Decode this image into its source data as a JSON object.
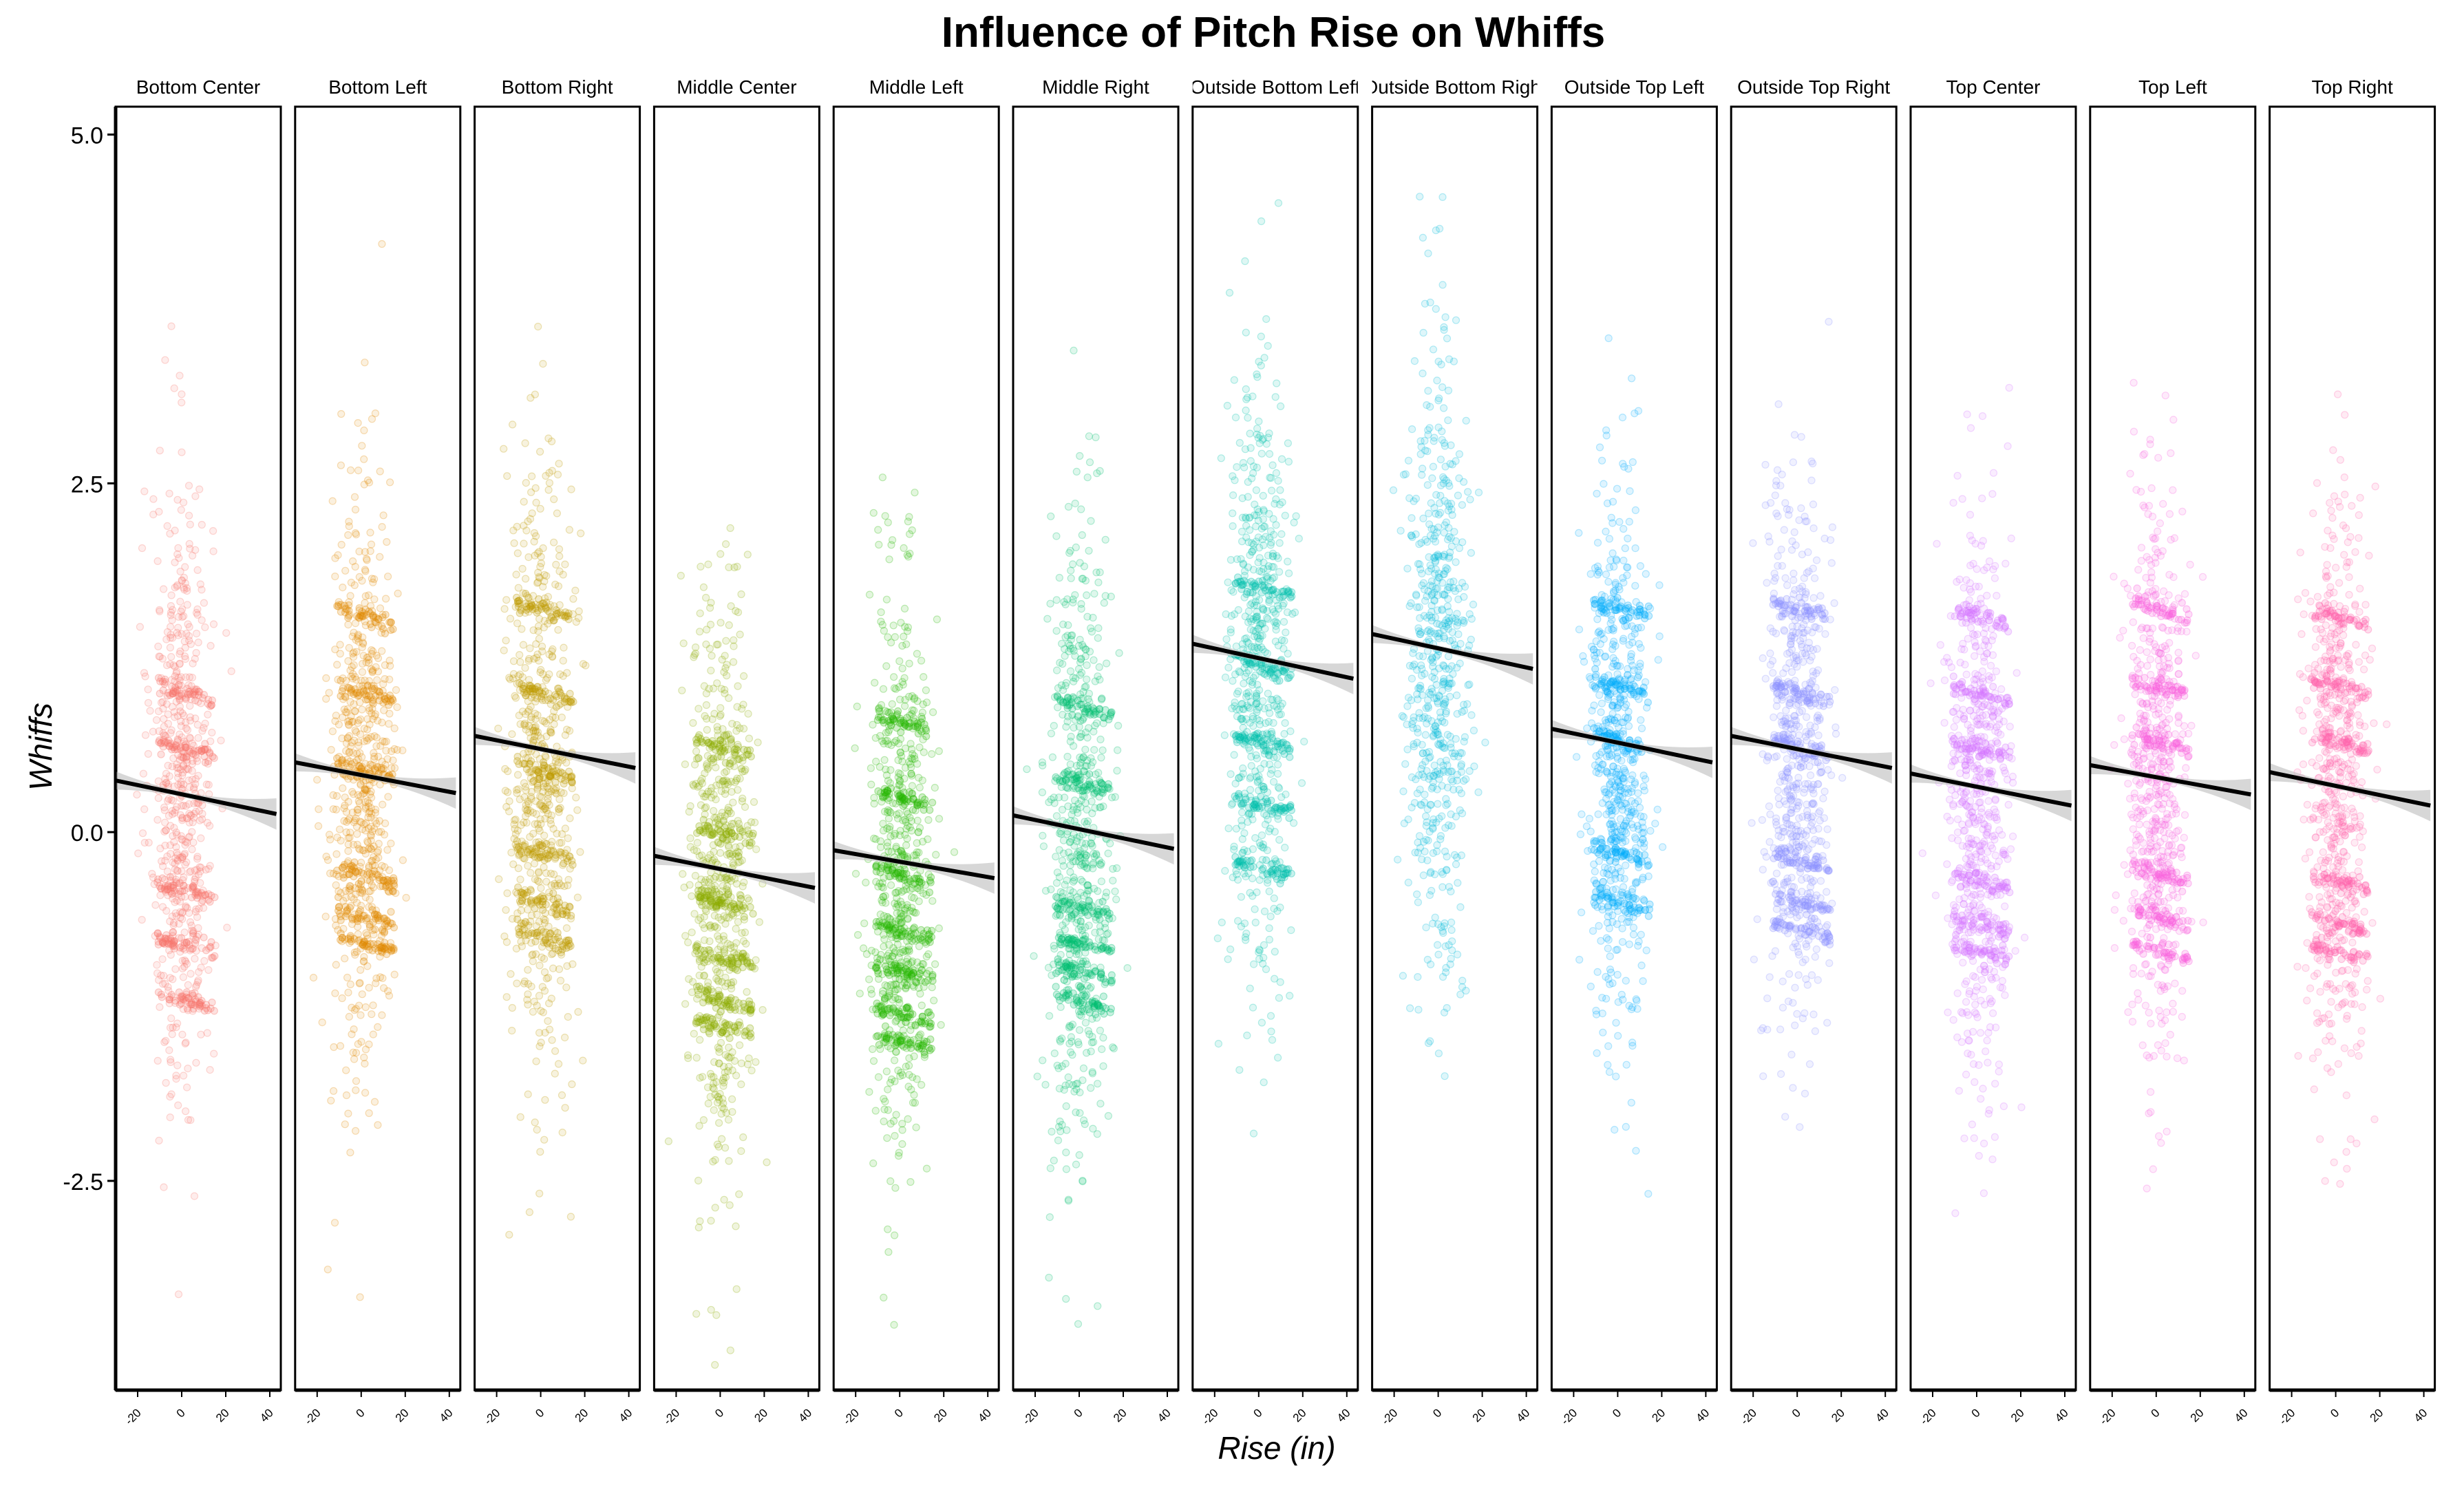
{
  "chart_data": {
    "type": "scatter",
    "title": "Influence of Pitch Rise on Whiffs",
    "xlabel": "Rise (in)",
    "ylabel": "Whiffs",
    "xlim": [
      -30,
      45
    ],
    "ylim": [
      -4.0,
      5.2
    ],
    "x_ticks": [
      -20,
      0,
      20,
      40
    ],
    "x_tick_labels": [
      "-20",
      "0",
      "20",
      "40"
    ],
    "y_ticks": [
      -2.5,
      0.0,
      2.5,
      5.0
    ],
    "y_tick_labels": [
      "-2.5",
      "0.0",
      "2.5",
      "5.0"
    ],
    "grid": false,
    "legend": "none",
    "trend_line_color": "#000000",
    "band_color": "#bdbdbd",
    "panels": [
      {
        "name": "Bottom Center",
        "color": "#F8766D",
        "y_center": 0.3,
        "y_spread": 1.1,
        "band_levels": [
          1.0,
          0.6,
          -0.4,
          -0.8,
          -1.2
        ],
        "trend": {
          "x": [
            -30,
            43
          ],
          "y": [
            0.37,
            0.13
          ]
        }
      },
      {
        "name": "Bottom Left",
        "color": "#E18A00",
        "y_center": 0.3,
        "y_spread": 1.05,
        "band_levels": [
          1.55,
          1.0,
          0.45,
          -0.3,
          -0.6,
          -0.8
        ],
        "trend": {
          "x": [
            -30,
            43
          ],
          "y": [
            0.5,
            0.28
          ]
        }
      },
      {
        "name": "Bottom Right",
        "color": "#BE9C00",
        "y_center": 0.5,
        "y_spread": 1.1,
        "band_levels": [
          1.6,
          1.0,
          0.45,
          -0.15,
          -0.5,
          -0.75
        ],
        "trend": {
          "x": [
            -30,
            43
          ],
          "y": [
            0.69,
            0.46
          ]
        }
      },
      {
        "name": "Middle Center",
        "color": "#8CAB00",
        "y_center": -0.4,
        "y_spread": 1.1,
        "band_levels": [
          0.6,
          0.0,
          -0.5,
          -0.9,
          -1.2,
          -1.4
        ],
        "trend": {
          "x": [
            -30,
            43
          ],
          "y": [
            -0.17,
            -0.4
          ]
        }
      },
      {
        "name": "Middle Left",
        "color": "#24B700",
        "y_center": -0.4,
        "y_spread": 1.05,
        "band_levels": [
          0.8,
          0.25,
          -0.3,
          -0.7,
          -1.0,
          -1.3,
          -1.5
        ],
        "trend": {
          "x": [
            -30,
            43
          ],
          "y": [
            -0.13,
            -0.33
          ]
        }
      },
      {
        "name": "Middle Right",
        "color": "#00BE70",
        "y_center": -0.1,
        "y_spread": 1.15,
        "band_levels": [
          0.9,
          0.35,
          -0.55,
          -0.8,
          -1.0,
          -1.2
        ],
        "trend": {
          "x": [
            -30,
            43
          ],
          "y": [
            0.12,
            -0.12
          ]
        }
      },
      {
        "name": "Outside Bottom Left",
        "color": "#00C1AB",
        "y_center": 1.1,
        "y_spread": 1.1,
        "band_levels": [
          1.75,
          1.2,
          0.65,
          0.2,
          -0.25
        ],
        "trend": {
          "x": [
            -30,
            43
          ],
          "y": [
            1.35,
            1.1
          ]
        }
      },
      {
        "name": "Outside Bottom Right",
        "color": "#00BBDA",
        "y_center": 1.2,
        "y_spread": 1.15,
        "band_levels": [],
        "trend": {
          "x": [
            -30,
            43
          ],
          "y": [
            1.42,
            1.17
          ]
        }
      },
      {
        "name": "Outside Top Left",
        "color": "#00ACFC",
        "y_center": 0.5,
        "y_spread": 0.95,
        "band_levels": [
          1.6,
          1.05,
          0.65,
          -0.15,
          -0.5
        ],
        "trend": {
          "x": [
            -30,
            43
          ],
          "y": [
            0.74,
            0.5
          ]
        }
      },
      {
        "name": "Outside Top Right",
        "color": "#8B93FF",
        "y_center": 0.5,
        "y_spread": 0.95,
        "band_levels": [
          1.6,
          1.0,
          0.6,
          -0.2,
          -0.5,
          -0.7
        ],
        "trend": {
          "x": [
            -30,
            43
          ],
          "y": [
            0.69,
            0.46
          ]
        }
      },
      {
        "name": "Top Center",
        "color": "#D575FE",
        "y_center": 0.2,
        "y_spread": 1.0,
        "band_levels": [
          1.55,
          1.0,
          0.6,
          -0.35,
          -0.65,
          -0.85
        ],
        "trend": {
          "x": [
            -30,
            43
          ],
          "y": [
            0.42,
            0.19
          ]
        }
      },
      {
        "name": "Top Left",
        "color": "#F962DD",
        "y_center": 0.3,
        "y_spread": 1.0,
        "band_levels": [
          1.6,
          1.05,
          0.65,
          -0.3,
          -0.6,
          -0.85
        ],
        "trend": {
          "x": [
            -30,
            43
          ],
          "y": [
            0.48,
            0.27
          ]
        }
      },
      {
        "name": "Top Right",
        "color": "#FF65AC",
        "y_center": 0.3,
        "y_spread": 1.0,
        "band_levels": [
          1.55,
          1.05,
          0.65,
          -0.35,
          -0.65,
          -0.85
        ],
        "trend": {
          "x": [
            -30,
            43
          ],
          "y": [
            0.43,
            0.19
          ]
        }
      }
    ]
  }
}
